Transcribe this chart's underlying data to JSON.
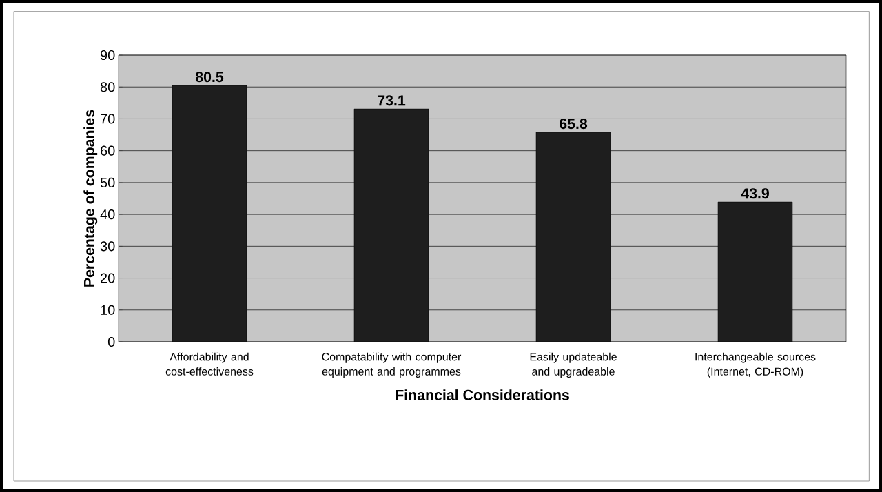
{
  "chart_data": {
    "type": "bar",
    "xlabel": "Financial Considerations",
    "ylabel": "Percentage of companies",
    "categories": [
      "Affordability and cost-effectiveness",
      "Compatability with computer equipment and programmes",
      "Easily updateable and upgradeable",
      "Interchangeable sources (Internet, CD-ROM)"
    ],
    "values": [
      80.5,
      73.1,
      65.8,
      43.9
    ],
    "color": "#1e1e1e",
    "ylim": [
      0,
      90
    ],
    "yticks": [
      0,
      10,
      20,
      30,
      40,
      50,
      60,
      70,
      80,
      90
    ],
    "grid": "y",
    "data_labels": true
  }
}
